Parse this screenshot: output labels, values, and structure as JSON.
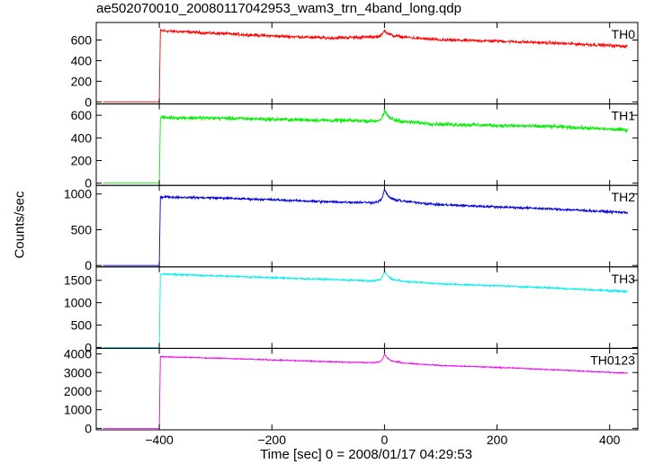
{
  "chart_data": {
    "type": "line",
    "title": "ae502070010_20080117042953_wam3_trn_4band_long.qdp",
    "xlabel": "Time [sec] 0 = 2008/01/17 04:29:53",
    "ylabel": "Counts/sec",
    "xlim": [
      -512,
      450
    ],
    "x_ticks": [
      -400,
      -200,
      0,
      200,
      400
    ],
    "x_tick_labels": [
      "−400",
      "−200",
      "0",
      "200",
      "400"
    ],
    "grid": false,
    "trigger_time": -400,
    "burst_peak_time": 0,
    "data_start": -500,
    "data_end": 432,
    "panels": [
      {
        "name": "TH0",
        "color": "#ff0000",
        "ylim": [
          -20,
          770
        ],
        "y_ticks": [
          0,
          200,
          400,
          600
        ],
        "y_tick_labels": [
          "0",
          "200",
          "400",
          "600"
        ],
        "pre_trigger_level": 0,
        "series": [
          {
            "x": -398,
            "y": 690
          },
          {
            "x": -300,
            "y": 665
          },
          {
            "x": -200,
            "y": 640
          },
          {
            "x": -100,
            "y": 620
          },
          {
            "x": -20,
            "y": 630
          },
          {
            "x": 0,
            "y": 700
          },
          {
            "x": 30,
            "y": 630
          },
          {
            "x": 100,
            "y": 600
          },
          {
            "x": 200,
            "y": 590
          },
          {
            "x": 300,
            "y": 570
          },
          {
            "x": 432,
            "y": 540
          }
        ],
        "noise": 22
      },
      {
        "name": "TH1",
        "color": "#00ee00",
        "ylim": [
          -20,
          700
        ],
        "y_ticks": [
          0,
          200,
          400,
          600
        ],
        "y_tick_labels": [
          "0",
          "200",
          "400",
          "600"
        ],
        "pre_trigger_level": 0,
        "series": [
          {
            "x": -398,
            "y": 580
          },
          {
            "x": -300,
            "y": 575
          },
          {
            "x": -200,
            "y": 565
          },
          {
            "x": -100,
            "y": 555
          },
          {
            "x": -20,
            "y": 550
          },
          {
            "x": 0,
            "y": 640
          },
          {
            "x": 30,
            "y": 545
          },
          {
            "x": 100,
            "y": 520
          },
          {
            "x": 200,
            "y": 510
          },
          {
            "x": 300,
            "y": 500
          },
          {
            "x": 432,
            "y": 470
          }
        ],
        "noise": 25
      },
      {
        "name": "TH2",
        "color": "#0000dd",
        "ylim": [
          -20,
          1120
        ],
        "y_ticks": [
          0,
          500,
          1000
        ],
        "y_tick_labels": [
          "0",
          "500",
          "1000"
        ],
        "pre_trigger_level": 0,
        "series": [
          {
            "x": -398,
            "y": 960
          },
          {
            "x": -300,
            "y": 945
          },
          {
            "x": -200,
            "y": 920
          },
          {
            "x": -100,
            "y": 890
          },
          {
            "x": -20,
            "y": 880
          },
          {
            "x": 0,
            "y": 1060
          },
          {
            "x": 30,
            "y": 900
          },
          {
            "x": 100,
            "y": 850
          },
          {
            "x": 200,
            "y": 820
          },
          {
            "x": 300,
            "y": 790
          },
          {
            "x": 432,
            "y": 740
          }
        ],
        "noise": 25
      },
      {
        "name": "TH3",
        "color": "#00eeee",
        "ylim": [
          -20,
          1800
        ],
        "y_ticks": [
          0,
          500,
          1000,
          1500
        ],
        "y_tick_labels": [
          "0",
          "500",
          "1000",
          "1500"
        ],
        "pre_trigger_level": 0,
        "series": [
          {
            "x": -398,
            "y": 1640
          },
          {
            "x": -300,
            "y": 1600
          },
          {
            "x": -200,
            "y": 1560
          },
          {
            "x": -100,
            "y": 1520
          },
          {
            "x": -20,
            "y": 1490
          },
          {
            "x": 0,
            "y": 1720
          },
          {
            "x": 30,
            "y": 1480
          },
          {
            "x": 100,
            "y": 1420
          },
          {
            "x": 200,
            "y": 1380
          },
          {
            "x": 300,
            "y": 1330
          },
          {
            "x": 432,
            "y": 1250
          }
        ],
        "noise": 30
      },
      {
        "name": "TH0123",
        "color": "#ee00ee",
        "ylim": [
          -80,
          4300
        ],
        "y_ticks": [
          0,
          1000,
          2000,
          3000,
          4000
        ],
        "y_tick_labels": [
          "0",
          "1000",
          "2000",
          "3000",
          "4000"
        ],
        "pre_trigger_level": 0,
        "series": [
          {
            "x": -398,
            "y": 3850
          },
          {
            "x": -300,
            "y": 3780
          },
          {
            "x": -200,
            "y": 3680
          },
          {
            "x": -100,
            "y": 3580
          },
          {
            "x": -20,
            "y": 3530
          },
          {
            "x": 0,
            "y": 4000
          },
          {
            "x": 30,
            "y": 3520
          },
          {
            "x": 100,
            "y": 3380
          },
          {
            "x": 200,
            "y": 3280
          },
          {
            "x": 300,
            "y": 3150
          },
          {
            "x": 432,
            "y": 2970
          }
        ],
        "noise": 45
      }
    ]
  }
}
